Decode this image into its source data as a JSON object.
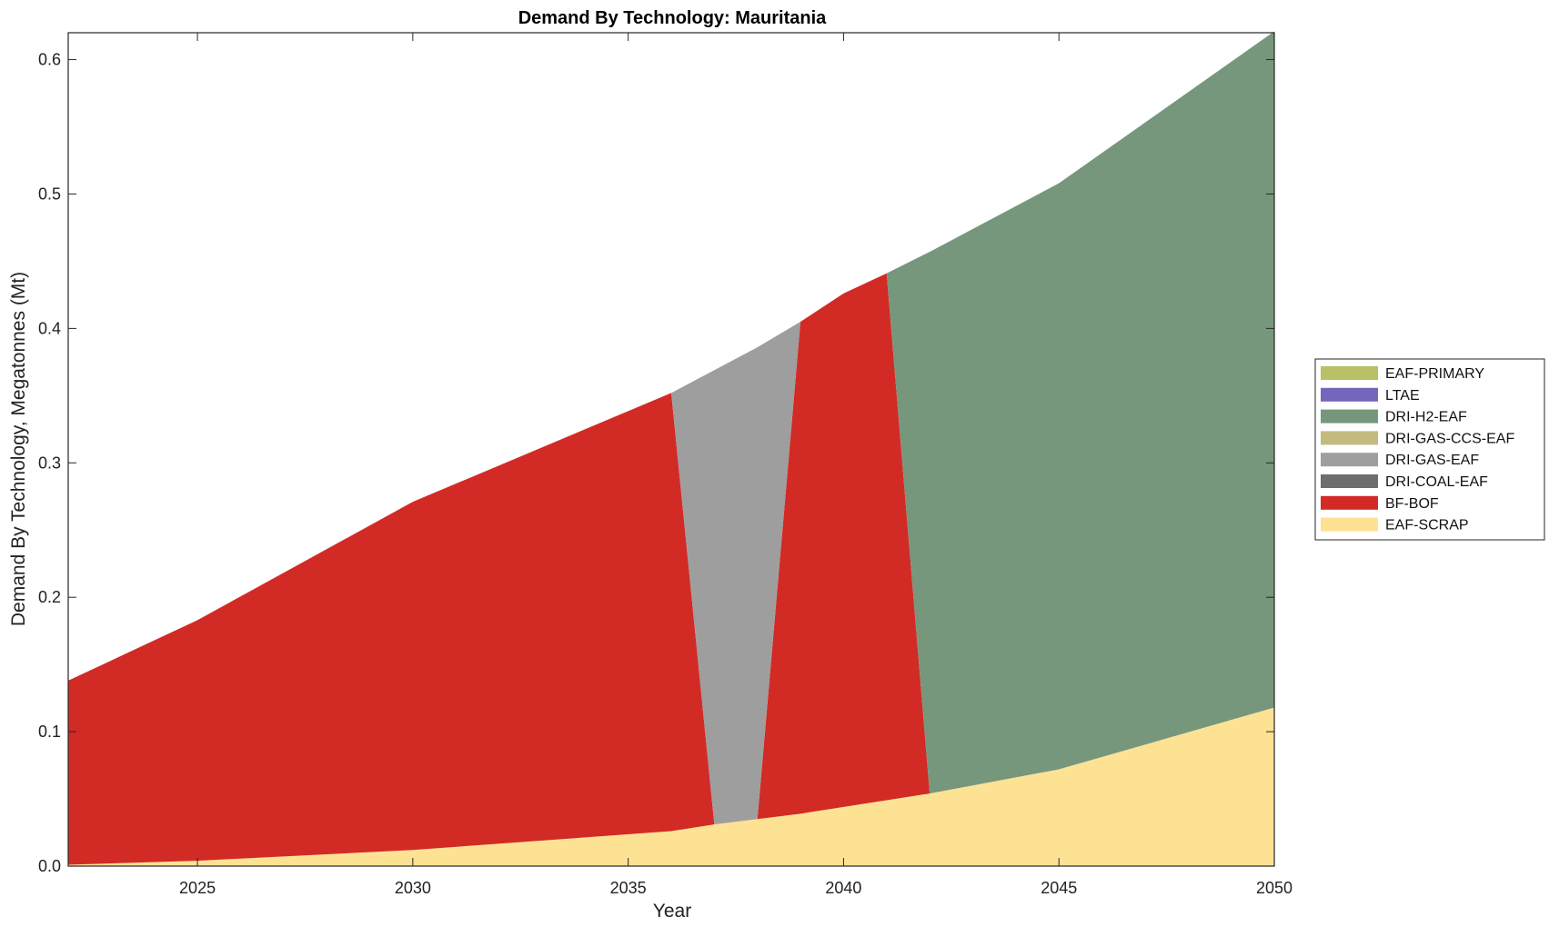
{
  "chart_data": {
    "type": "area",
    "stacked": true,
    "title": "Demand By Technology: Mauritania",
    "xlabel": "Year",
    "ylabel": "Demand By Technology, Megatonnes (Mt)",
    "xlim": [
      2022,
      2050
    ],
    "ylim": [
      0,
      0.62
    ],
    "xticks": [
      2025,
      2030,
      2035,
      2040,
      2045,
      2050
    ],
    "yticks": [
      0.0,
      0.1,
      0.2,
      0.3,
      0.4,
      0.5,
      0.6
    ],
    "ytick_labels": [
      "0.0",
      "0.1",
      "0.2",
      "0.3",
      "0.4",
      "0.5",
      "0.6"
    ],
    "grid": false,
    "legend_position": "right",
    "x": [
      2022,
      2025,
      2030,
      2036,
      2037,
      2038,
      2039,
      2040,
      2041,
      2042,
      2045,
      2050
    ],
    "series": [
      {
        "name": "EAF-SCRAP",
        "color": "#FDE294",
        "values": [
          0.001,
          0.004,
          0.012,
          0.026,
          0.031,
          0.035,
          0.039,
          0.044,
          0.049,
          0.054,
          0.072,
          0.118
        ]
      },
      {
        "name": "BF-BOF",
        "color": "#D22B26",
        "values": [
          0.137,
          0.179,
          0.259,
          0.326,
          0.0,
          0.0,
          0.366,
          0.382,
          0.392,
          0.0,
          0.0,
          0.0
        ]
      },
      {
        "name": "DRI-COAL-EAF",
        "color": "#6E6E6E",
        "values": [
          0,
          0,
          0,
          0,
          0,
          0,
          0,
          0,
          0,
          0,
          0,
          0
        ]
      },
      {
        "name": "DRI-GAS-EAF",
        "color": "#9E9E9E",
        "values": [
          0.0,
          0.0,
          0.0,
          0.0,
          0.338,
          0.351,
          0.0,
          0.0,
          0.0,
          0.0,
          0.0,
          0.0
        ]
      },
      {
        "name": "DRI-GAS-CCS-EAF",
        "color": "#C4BA7E",
        "values": [
          0,
          0,
          0,
          0,
          0,
          0,
          0,
          0,
          0,
          0,
          0,
          0
        ]
      },
      {
        "name": "DRI-H2-EAF",
        "color": "#77977D",
        "values": [
          0.0,
          0.0,
          0.0,
          0.0,
          0.0,
          0.0,
          0.0,
          0.0,
          0.0,
          0.403,
          0.436,
          0.503
        ]
      },
      {
        "name": "LTAE",
        "color": "#7566BB",
        "values": [
          0,
          0,
          0,
          0,
          0,
          0,
          0,
          0,
          0,
          0,
          0,
          0
        ]
      },
      {
        "name": "EAF-PRIMARY",
        "color": "#B8C165",
        "values": [
          0,
          0,
          0,
          0,
          0,
          0,
          0,
          0,
          0,
          0,
          0,
          0
        ]
      }
    ],
    "legend_order": [
      "EAF-PRIMARY",
      "LTAE",
      "DRI-H2-EAF",
      "DRI-GAS-CCS-EAF",
      "DRI-GAS-EAF",
      "DRI-COAL-EAF",
      "BF-BOF",
      "EAF-SCRAP"
    ]
  }
}
